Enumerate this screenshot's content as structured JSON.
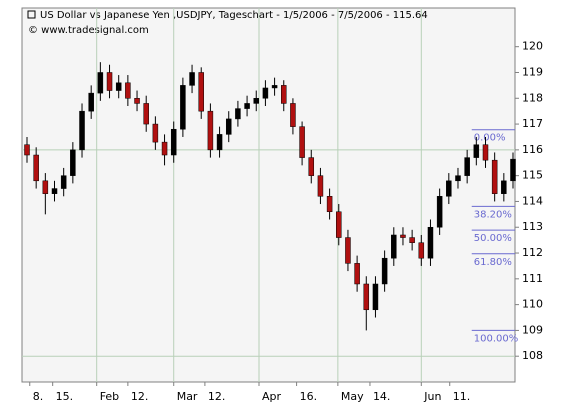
{
  "chart_data": {
    "type": "candlestick",
    "title": "US Dollar vs Japanese Yen ,USDJPY, Tageschart - 1/5/2006 - 7/5/2006 - 115.64",
    "subtitle": "© www.tradesignal.com",
    "open": [
      116.2,
      115.8,
      114.8,
      114.3,
      114.5,
      115.0,
      116.0,
      117.5,
      118.2,
      119.0,
      118.3,
      118.6,
      118.0,
      117.8,
      117.0,
      116.3,
      115.8,
      116.8,
      118.5,
      119.0,
      117.5,
      116.0,
      116.6,
      117.2,
      117.6,
      117.8,
      118.0,
      118.4,
      118.5,
      117.8,
      116.9,
      115.7,
      115.0,
      114.2,
      113.6,
      112.6,
      111.6,
      110.8,
      109.8,
      110.8,
      111.8,
      112.7,
      112.6,
      112.4,
      111.8,
      113.0,
      114.2,
      114.8,
      115.0,
      115.7,
      116.2,
      115.6,
      114.3,
      114.8
    ],
    "high": [
      116.5,
      116.1,
      115.1,
      114.8,
      115.3,
      116.3,
      117.8,
      118.5,
      119.4,
      119.3,
      118.9,
      118.9,
      118.3,
      118.1,
      117.3,
      116.6,
      117.1,
      118.8,
      119.3,
      119.2,
      117.8,
      116.9,
      117.5,
      117.9,
      118.1,
      118.3,
      118.7,
      118.8,
      118.7,
      118.0,
      117.1,
      116.0,
      115.3,
      114.5,
      113.9,
      112.9,
      111.9,
      111.1,
      111.1,
      112.1,
      113.0,
      113.0,
      112.9,
      112.7,
      113.3,
      114.5,
      115.1,
      115.3,
      116.0,
      116.5,
      116.5,
      115.9,
      115.1,
      115.9
    ],
    "low": [
      115.5,
      114.5,
      113.5,
      114.0,
      114.2,
      114.7,
      115.7,
      117.2,
      117.9,
      118.0,
      118.0,
      117.7,
      117.5,
      116.7,
      116.0,
      115.4,
      115.5,
      116.5,
      118.2,
      117.2,
      115.7,
      115.7,
      116.3,
      116.9,
      117.3,
      117.5,
      117.7,
      118.1,
      117.5,
      116.6,
      115.4,
      114.7,
      113.9,
      113.3,
      112.3,
      111.3,
      110.5,
      109.0,
      109.5,
      110.5,
      111.5,
      112.3,
      112.1,
      111.5,
      111.5,
      112.7,
      113.9,
      114.5,
      114.7,
      115.4,
      115.3,
      114.0,
      114.0,
      114.5
    ],
    "close": [
      115.8,
      114.8,
      114.3,
      114.5,
      115.0,
      116.0,
      117.5,
      118.2,
      119.0,
      118.3,
      118.6,
      118.0,
      117.8,
      117.0,
      116.3,
      115.8,
      116.8,
      118.5,
      119.0,
      117.5,
      116.0,
      116.6,
      117.2,
      117.6,
      117.8,
      118.0,
      118.4,
      118.5,
      117.8,
      116.9,
      115.7,
      115.0,
      114.2,
      113.6,
      112.6,
      111.6,
      110.8,
      109.8,
      110.8,
      111.8,
      112.7,
      112.6,
      112.4,
      111.8,
      113.0,
      114.2,
      114.8,
      115.0,
      115.7,
      116.2,
      115.6,
      114.3,
      114.8,
      115.64
    ],
    "up_color": "#000000",
    "down_color": "#b01010",
    "xlim": [
      -0.5,
      53.5
    ],
    "xticks": [
      {
        "value": 0.3,
        "label": "8."
      },
      {
        "value": 2.8,
        "label": "15."
      },
      {
        "value": 7.6,
        "label": "Feb"
      },
      {
        "value": 11.0,
        "label": "12."
      },
      {
        "value": 16.0,
        "label": "Mar"
      },
      {
        "value": 19.4,
        "label": "12."
      },
      {
        "value": 25.3,
        "label": "Apr"
      },
      {
        "value": 29.4,
        "label": "16."
      },
      {
        "value": 33.9,
        "label": "May"
      },
      {
        "value": 37.4,
        "label": "14."
      },
      {
        "value": 43.0,
        "label": "Jun"
      },
      {
        "value": 46.1,
        "label": "11."
      }
    ],
    "month_grid": [
      7.6,
      16.0,
      25.3,
      33.9,
      43.0
    ],
    "ylim": [
      107,
      121.5
    ],
    "yticks": [
      108,
      109,
      110,
      111,
      112,
      113,
      114,
      115,
      116,
      117,
      118,
      119,
      120
    ],
    "hgrid": [
      108,
      116
    ],
    "fib_levels": [
      {
        "value": 116.78,
        "label": "0.00%"
      },
      {
        "value": 113.81,
        "label": "38.20%"
      },
      {
        "value": 112.89,
        "label": "50.00%"
      },
      {
        "value": 111.97,
        "label": "61.80%"
      },
      {
        "value": 109.0,
        "label": "100.00%"
      }
    ],
    "fib_start": 48.5,
    "fib_color": "#6a6ad0"
  }
}
